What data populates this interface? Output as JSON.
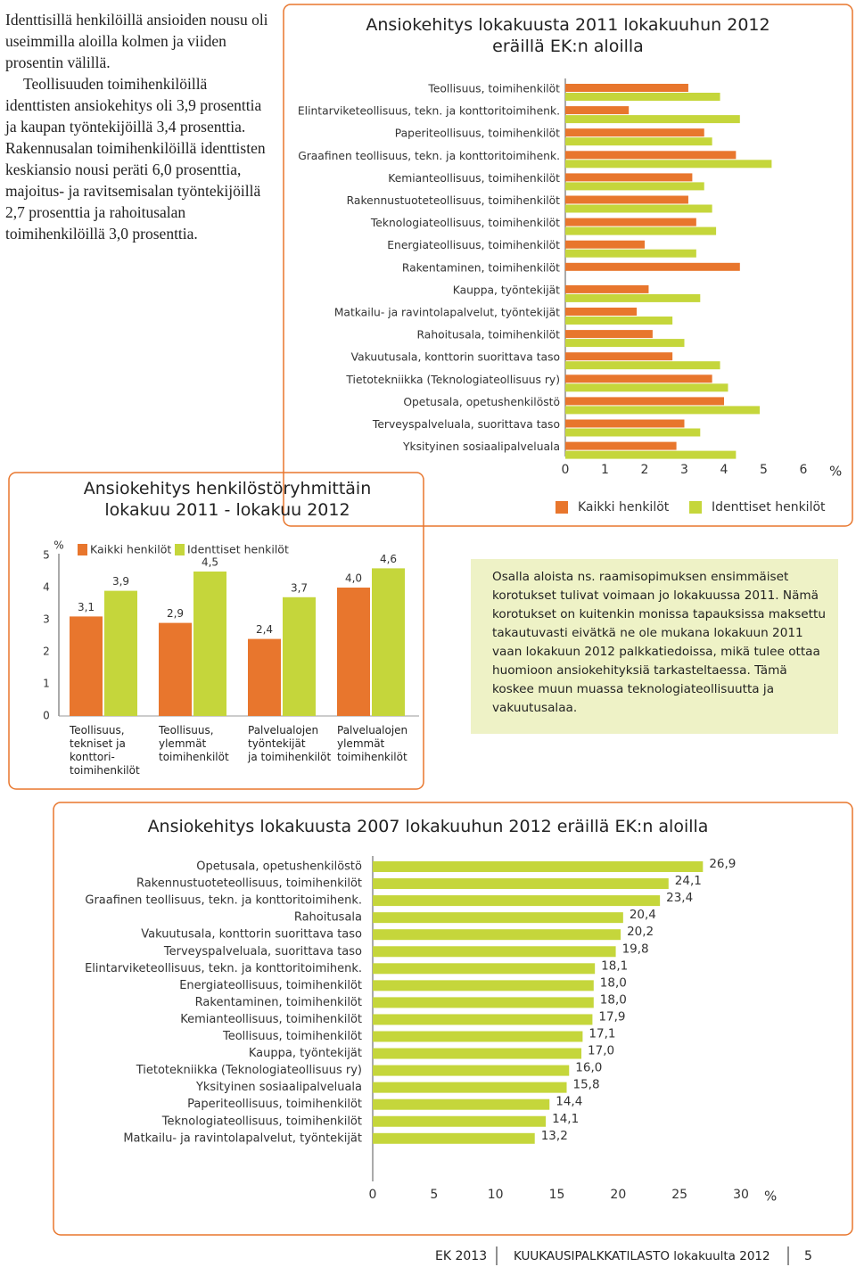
{
  "body_text": [
    "Identtisillä henkilöillä ansioiden nousu oli useimmilla aloilla kolmen ja viiden prosentin välillä.",
    "Teollisuuden toimihenkilöillä identtisten ansiokehitys oli 3,9 prosenttia ja kaupan työntekijöillä 3,4 prosenttia. Rakennusalan toimihenkilöillä identtisten keskiansio nousi peräti 6,0 prosenttia, majoitus- ja ravitsemisalan työntekijöillä 2,7 prosenttia ja rahoitusalan toimihenkilöillä 3,0 prosenttia."
  ],
  "chart_data": [
    {
      "type": "barh",
      "title": "Ansiokehitys lokakuusta 2011 lokakuuhun 2012\neräillä EK:n aloilla",
      "categories": [
        "Teollisuus, toimihenkilöt",
        "Elintarviketeollisuus, tekn. ja konttoritoimihenk.",
        "Paperiteollisuus, toimihenkilöt",
        "Graafinen teollisuus, tekn. ja konttoritoimihenk.",
        "Kemianteollisuus, toimihenkilöt",
        "Rakennustuoteteollisuus, toimihenkilöt",
        "Teknologiateollisuus, toimihenkilöt",
        "Energiateollisuus, toimihenkilöt",
        "Rakentaminen, toimihenkilöt",
        "Kauppa, työntekijät",
        "Matkailu- ja ravintolapalvelut, työntekijät",
        "Rahoitusala, toimihenkilöt",
        "Vakuutusala, konttorin suorittava taso",
        "Tietotekniikka (Teknologiateollisuus ry)",
        "Opetusala, opetushenkilöstö",
        "Terveyspalveluala, suorittava taso",
        "Yksityinen sosiaalipalveluala"
      ],
      "series": [
        {
          "name": "Kaikki henkilöt",
          "color": "#e8762d",
          "values": [
            3.1,
            1.6,
            3.5,
            4.3,
            3.2,
            3.1,
            3.3,
            2.0,
            4.4,
            2.1,
            1.8,
            2.2,
            2.7,
            3.7,
            4.0,
            3.0,
            2.8
          ]
        },
        {
          "name": "Identtiset henkilöt",
          "color": "#c5d63b",
          "values": [
            3.9,
            4.4,
            3.7,
            5.2,
            3.5,
            3.7,
            3.8,
            3.3,
            null,
            3.4,
            2.7,
            3.0,
            3.9,
            4.1,
            4.9,
            3.4,
            4.3
          ]
        }
      ],
      "xlim": [
        0,
        6
      ],
      "xticks": [
        0,
        1,
        2,
        3,
        4,
        5,
        6
      ],
      "x_label": "%",
      "legend": "bottom"
    },
    {
      "type": "bar",
      "title": "Ansiokehitys henkilöstöryhmittäin\nlokakuu 2011 - lokakuu 2012",
      "categories": [
        "Teollisuus,\ntekniset ja\nkonttori-\ntoimihenkilöt",
        "Teollisuus,\nylemmät\ntoimihenkilöt",
        "Palvelualojen\ntyöntekijät\nja toimihenkilöt",
        "Palvelualojen\nylemmät\ntoimihenkilöt"
      ],
      "series": [
        {
          "name": "Kaikki henkilöt",
          "color": "#e8762d",
          "values": [
            3.1,
            2.9,
            2.4,
            4.0
          ],
          "value_labels": [
            "3,1",
            "2,9",
            "2,4",
            "4,0"
          ]
        },
        {
          "name": "Identtiset henkilöt",
          "color": "#c5d63b",
          "values": [
            3.9,
            4.5,
            3.7,
            4.6
          ],
          "value_labels": [
            "3,9",
            "4,5",
            "3,7",
            "4,6"
          ]
        }
      ],
      "ylim": [
        0,
        5
      ],
      "yticks": [
        0,
        1,
        2,
        3,
        4,
        5
      ],
      "y_label": "%",
      "legend": "top"
    },
    {
      "type": "barh",
      "title": "Ansiokehitys lokakuusta 2007 lokakuuhun 2012 eräillä EK:n aloilla",
      "categories": [
        "Opetusala, opetushenkilöstö",
        "Rakennustuoteteollisuus, toimihenkilöt",
        "Graafinen teollisuus, tekn. ja konttoritoimihenk.",
        "Rahoitusala",
        "Vakuutusala, konttorin suorittava taso",
        "Terveyspalveluala, suorittava taso",
        "Elintarviketeollisuus, tekn. ja konttoritoimihenk.",
        "Energiateollisuus, toimihenkilöt",
        "Rakentaminen, toimihenkilöt",
        "Kemianteollisuus, toimihenkilöt",
        "Teollisuus, toimihenkilöt",
        "Kauppa, työntekijät",
        "Tietotekniikka (Teknologiateollisuus ry)",
        "Yksityinen sosiaalipalveluala",
        "Paperiteollisuus, toimihenkilöt",
        "Teknologiateollisuus, toimihenkilöt",
        "Matkailu- ja ravintolapalvelut, työntekijät"
      ],
      "series": [
        {
          "name": null,
          "color": "#c5d63b",
          "values": [
            26.9,
            24.1,
            23.4,
            20.4,
            20.2,
            19.8,
            18.1,
            18.0,
            18.0,
            17.9,
            17.1,
            17.0,
            16.0,
            15.8,
            14.4,
            14.1,
            13.2
          ],
          "value_labels": [
            "26,9",
            "24,1",
            "23,4",
            "20,4",
            "20,2",
            "19,8",
            "18,1",
            "18,0",
            "18,0",
            "17,9",
            "17,1",
            "17,0",
            "16,0",
            "15,8",
            "14,4",
            "14,1",
            "13,2"
          ]
        }
      ],
      "xlim": [
        0,
        30
      ],
      "xticks": [
        0,
        5,
        10,
        15,
        20,
        25,
        30
      ],
      "x_label": "%"
    }
  ],
  "note": "Osalla aloista ns. raamisopimuksen ensimmäiset korotukset tulivat voimaan jo lokakuussa 2011. Nämä korotukset on kuitenkin monissa tapauksissa maksettu takautuvasti eivätkä ne ole mukana lokakuun 2011 vaan lokakuun 2012 palkkatiedoissa, mikä tulee ottaa huomioon ansiokehityksiä tarkasteltaessa. Tämä koskee muun muassa teknologiateollisuutta ja vakuutusalaa.",
  "footer": {
    "publisher": "EK 2013",
    "publication": "KUUKAUSIPALKKATILASTO lokakuulta 2012",
    "page": "5"
  }
}
